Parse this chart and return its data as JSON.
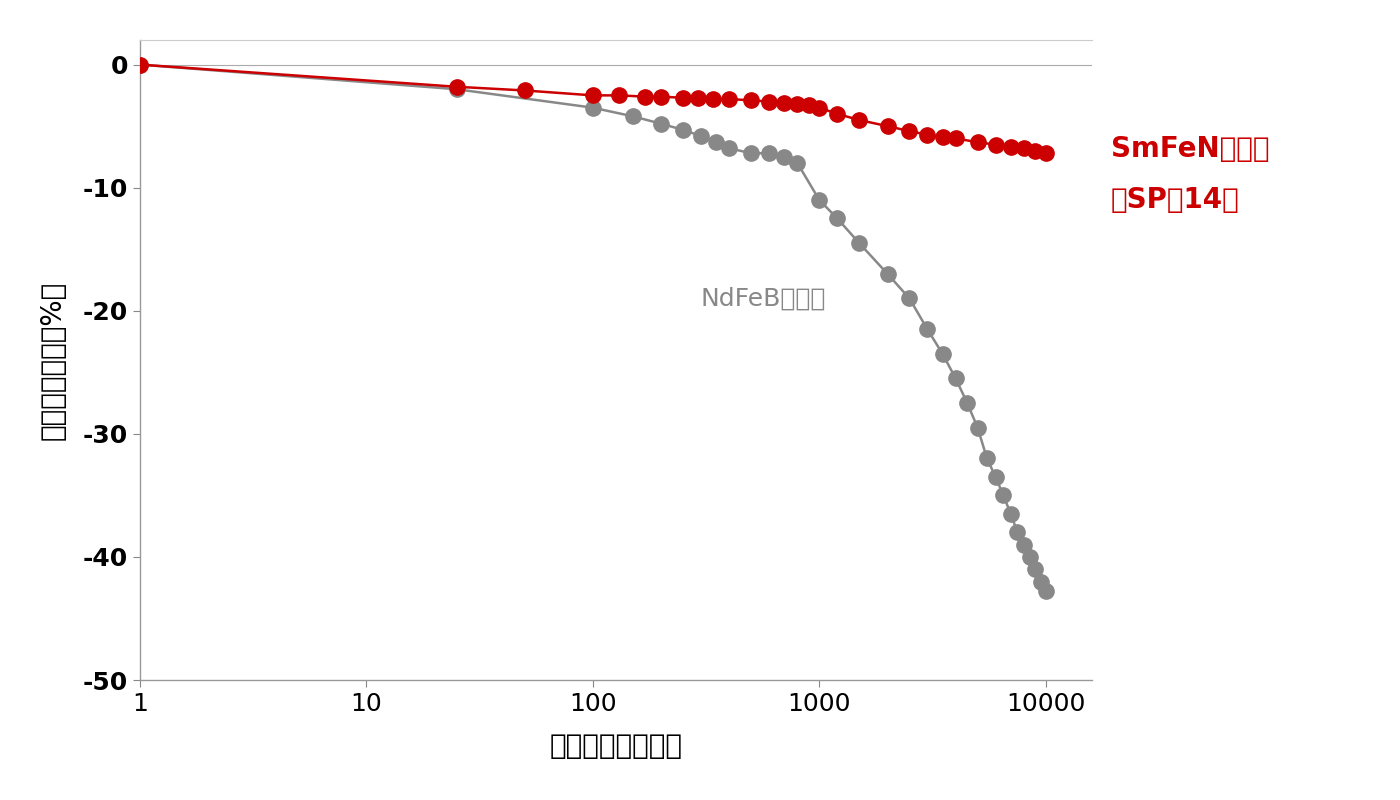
{
  "smfen_x": [
    1,
    25,
    50,
    100,
    130,
    170,
    200,
    250,
    290,
    340,
    400,
    500,
    600,
    700,
    800,
    900,
    1000,
    1200,
    1500,
    2000,
    2500,
    3000,
    3500,
    4000,
    5000,
    6000,
    7000,
    8000,
    9000,
    10000
  ],
  "smfen_y": [
    0,
    -1.8,
    -2.1,
    -2.5,
    -2.5,
    -2.6,
    -2.6,
    -2.7,
    -2.7,
    -2.8,
    -2.8,
    -2.9,
    -3.0,
    -3.1,
    -3.2,
    -3.3,
    -3.5,
    -4.0,
    -4.5,
    -5.0,
    -5.4,
    -5.7,
    -5.9,
    -6.0,
    -6.3,
    -6.5,
    -6.7,
    -6.8,
    -7.0,
    -7.2
  ],
  "ndfeb_x": [
    1,
    25,
    100,
    150,
    200,
    250,
    300,
    350,
    400,
    500,
    600,
    700,
    800,
    1000,
    1200,
    1500,
    2000,
    2500,
    3000,
    3500,
    4000,
    4500,
    5000,
    5500,
    6000,
    6500,
    7000,
    7500,
    8000,
    8500,
    9000,
    9500,
    10000
  ],
  "ndfeb_y": [
    0,
    -2.0,
    -3.5,
    -4.2,
    -4.8,
    -5.3,
    -5.8,
    -6.3,
    -6.8,
    -7.2,
    -7.2,
    -7.5,
    -8.0,
    -11.0,
    -12.5,
    -14.5,
    -17.0,
    -19.0,
    -21.5,
    -23.5,
    -25.5,
    -27.5,
    -29.5,
    -32.0,
    -33.5,
    -35.0,
    -36.5,
    -38.0,
    -39.0,
    -40.0,
    -41.0,
    -42.0,
    -42.8
  ],
  "smfen_color": "#cc0000",
  "ndfeb_color": "#888888",
  "xlabel": "経過時間（時間）",
  "ylabel": "不可逆減磁率（%）",
  "smfen_label_line1": "SmFeN系磁石",
  "smfen_label_line2": "（SP－14）",
  "ndfeb_label": "NdFeB系磁石",
  "xlim": [
    1,
    16000
  ],
  "ylim": [
    -50,
    2
  ],
  "yticks": [
    0,
    -10,
    -20,
    -30,
    -40,
    -50
  ],
  "background_color": "#ffffff",
  "marker_size": 11,
  "line_width": 1.8
}
